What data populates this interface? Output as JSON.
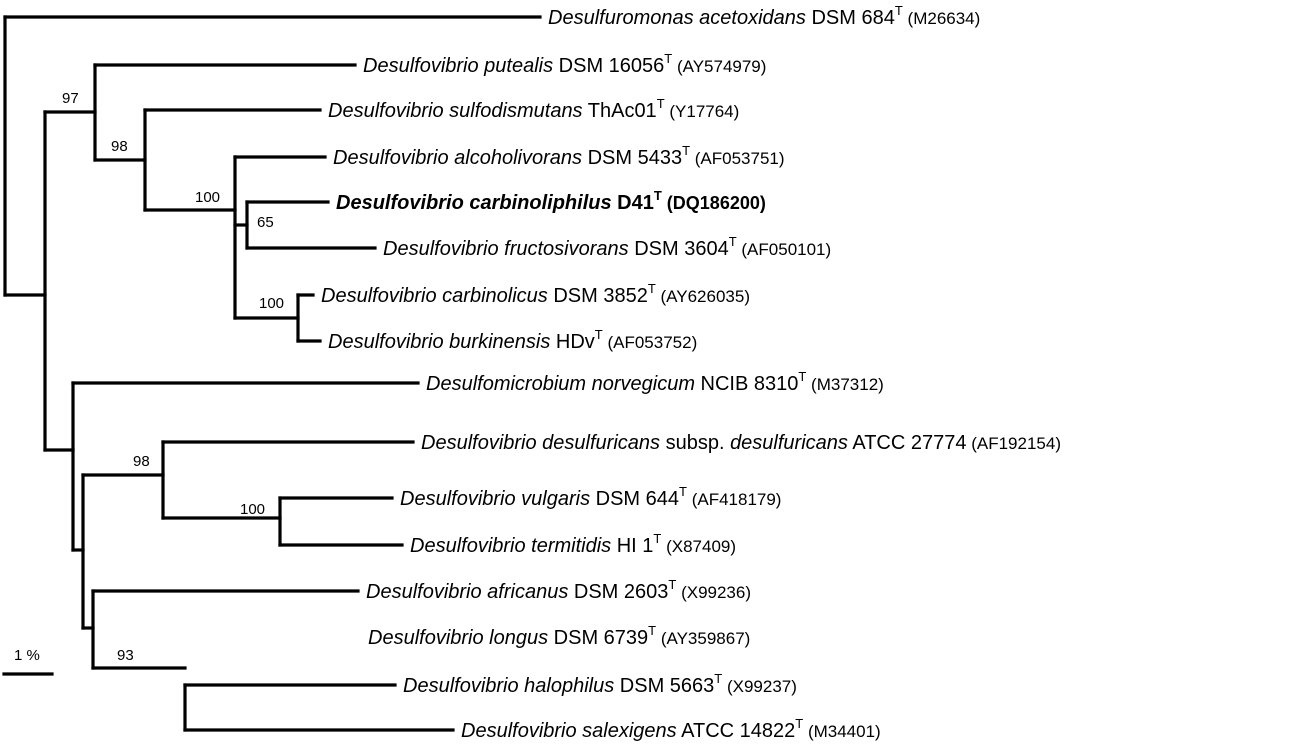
{
  "tree": {
    "taxa": [
      {
        "id": "t1",
        "genus_species": "Desulfuromonas acetoxidans",
        "subsp": "",
        "strain": "DSM 684",
        "type_mark": "T",
        "accession": "(M26634)",
        "bold": false
      },
      {
        "id": "t2",
        "genus_species": "Desulfovibrio putealis",
        "subsp": "",
        "strain": "DSM 16056",
        "type_mark": "T",
        "accession": "(AY574979)",
        "bold": false
      },
      {
        "id": "t3",
        "genus_species": "Desulfovibrio sulfodismutans",
        "subsp": "",
        "strain": "ThAc01",
        "type_mark": "T",
        "accession": "(Y17764)",
        "bold": false
      },
      {
        "id": "t4",
        "genus_species": "Desulfovibrio alcoholivorans",
        "subsp": "",
        "strain": "DSM 5433",
        "type_mark": "T",
        "accession": "(AF053751)",
        "bold": false
      },
      {
        "id": "t5",
        "genus_species": "Desulfovibrio carbinoliphilus",
        "subsp": "",
        "strain": "D41",
        "type_mark": "T",
        "accession": "(DQ186200)",
        "bold": true
      },
      {
        "id": "t6",
        "genus_species": "Desulfovibrio fructosivorans",
        "subsp": "",
        "strain": "DSM 3604",
        "type_mark": "T",
        "accession": "(AF050101)",
        "bold": false
      },
      {
        "id": "t7",
        "genus_species": "Desulfovibrio carbinolicus",
        "subsp": "",
        "strain": "DSM 3852",
        "type_mark": "T",
        "accession": "(AY626035)",
        "bold": false
      },
      {
        "id": "t8",
        "genus_species": "Desulfovibrio burkinensis",
        "subsp": "",
        "strain": "HDv",
        "type_mark": "T",
        "accession": "(AF053752)",
        "bold": false
      },
      {
        "id": "t9",
        "genus_species": "Desulfomicrobium norvegicum",
        "subsp": "",
        "strain": "NCIB 8310",
        "type_mark": "T",
        "accession": "(M37312)",
        "bold": false
      },
      {
        "id": "t10",
        "genus_species": "Desulfovibrio desulfuricans",
        "subsp": "subsp. desulfuricans",
        "strain": "ATCC 27774",
        "type_mark": "",
        "accession": "(AF192154)",
        "bold": false
      },
      {
        "id": "t11",
        "genus_species": "Desulfovibrio vulgaris",
        "subsp": "",
        "strain": "DSM 644",
        "type_mark": "T",
        "accession": "(AF418179)",
        "bold": false
      },
      {
        "id": "t12",
        "genus_species": "Desulfovibrio termitidis",
        "subsp": "",
        "strain": "HI 1",
        "type_mark": "T",
        "accession": "(X87409)",
        "bold": false
      },
      {
        "id": "t13",
        "genus_species": "Desulfovibrio africanus",
        "subsp": "",
        "strain": "DSM 2603",
        "type_mark": "T",
        "accession": "(X99236)",
        "bold": false
      },
      {
        "id": "t14",
        "genus_species": "Desulfovibrio longus",
        "subsp": "",
        "strain": "DSM 6739",
        "type_mark": "T",
        "accession": "(AY359867)",
        "bold": false
      },
      {
        "id": "t15",
        "genus_species": "Desulfovibrio halophilus",
        "subsp": "",
        "strain": "DSM 5663",
        "type_mark": "T",
        "accession": "(X99237)",
        "bold": false
      },
      {
        "id": "t16",
        "genus_species": "Desulfovibrio salexigens",
        "subsp": "",
        "strain": "ATCC 14822",
        "type_mark": "T",
        "accession": "(M34401)",
        "bold": false
      }
    ],
    "bootstrap_values": [
      {
        "id": "b97",
        "value": "97"
      },
      {
        "id": "b98a",
        "value": "98"
      },
      {
        "id": "b100a",
        "value": "100"
      },
      {
        "id": "b65",
        "value": "65"
      },
      {
        "id": "b100b",
        "value": "100"
      },
      {
        "id": "b98b",
        "value": "98"
      },
      {
        "id": "b100c",
        "value": "100"
      },
      {
        "id": "b93",
        "value": "93"
      }
    ],
    "scale_bar_label": "1 %"
  }
}
